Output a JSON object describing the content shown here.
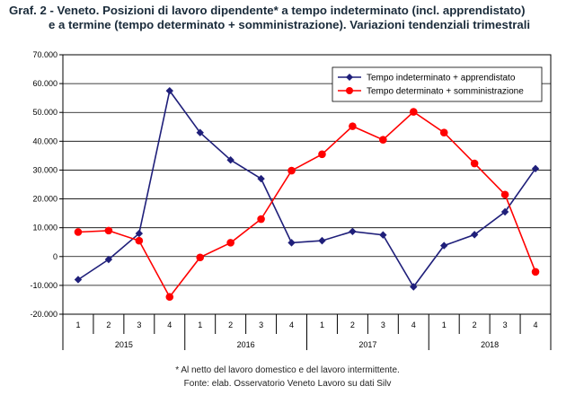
{
  "title_line1": "Graf. 2 - Veneto. Posizioni di lavoro dipendente* a tempo indeterminato (incl. apprendistato)",
  "title_line2": "e a termine (tempo determinato + somministrazione). Variazioni tendenziali trimestrali",
  "footnote": "* Al netto del lavoro domestico e del lavoro intermittente.",
  "source": "Fonte: elab. Osservatorio Veneto Lavoro su dati Silv",
  "chart_data": {
    "type": "line",
    "ylim": [
      -20000,
      70000
    ],
    "yticks": [
      -20000,
      -10000,
      0,
      10000,
      20000,
      30000,
      40000,
      50000,
      60000,
      70000
    ],
    "ytick_labels": [
      "-20.000",
      "-10.000",
      "0",
      "10.000",
      "20.000",
      "30.000",
      "40.000",
      "50.000",
      "60.000",
      "70.000"
    ],
    "categories": [
      "1",
      "2",
      "3",
      "4",
      "1",
      "2",
      "3",
      "4",
      "1",
      "2",
      "3",
      "4",
      "1",
      "2",
      "3",
      "4"
    ],
    "groups": [
      "2015",
      "2016",
      "2017",
      "2018"
    ],
    "grid": true,
    "legend_position": "top-right",
    "series": [
      {
        "name": "Tempo indeterminato + apprendistato",
        "color": "#1f1f7a",
        "marker": "diamond",
        "values": [
          -8000,
          -1000,
          8000,
          57500,
          43000,
          33500,
          27000,
          4800,
          5500,
          8700,
          7500,
          -10500,
          3800,
          7600,
          15500,
          30500
        ]
      },
      {
        "name": "Tempo determinato + somministrazione",
        "color": "#ff0000",
        "marker": "circle",
        "values": [
          8500,
          9000,
          5500,
          -14000,
          -300,
          4800,
          13000,
          29800,
          35500,
          45200,
          40500,
          50200,
          43000,
          32300,
          21500,
          -5300
        ]
      }
    ]
  }
}
